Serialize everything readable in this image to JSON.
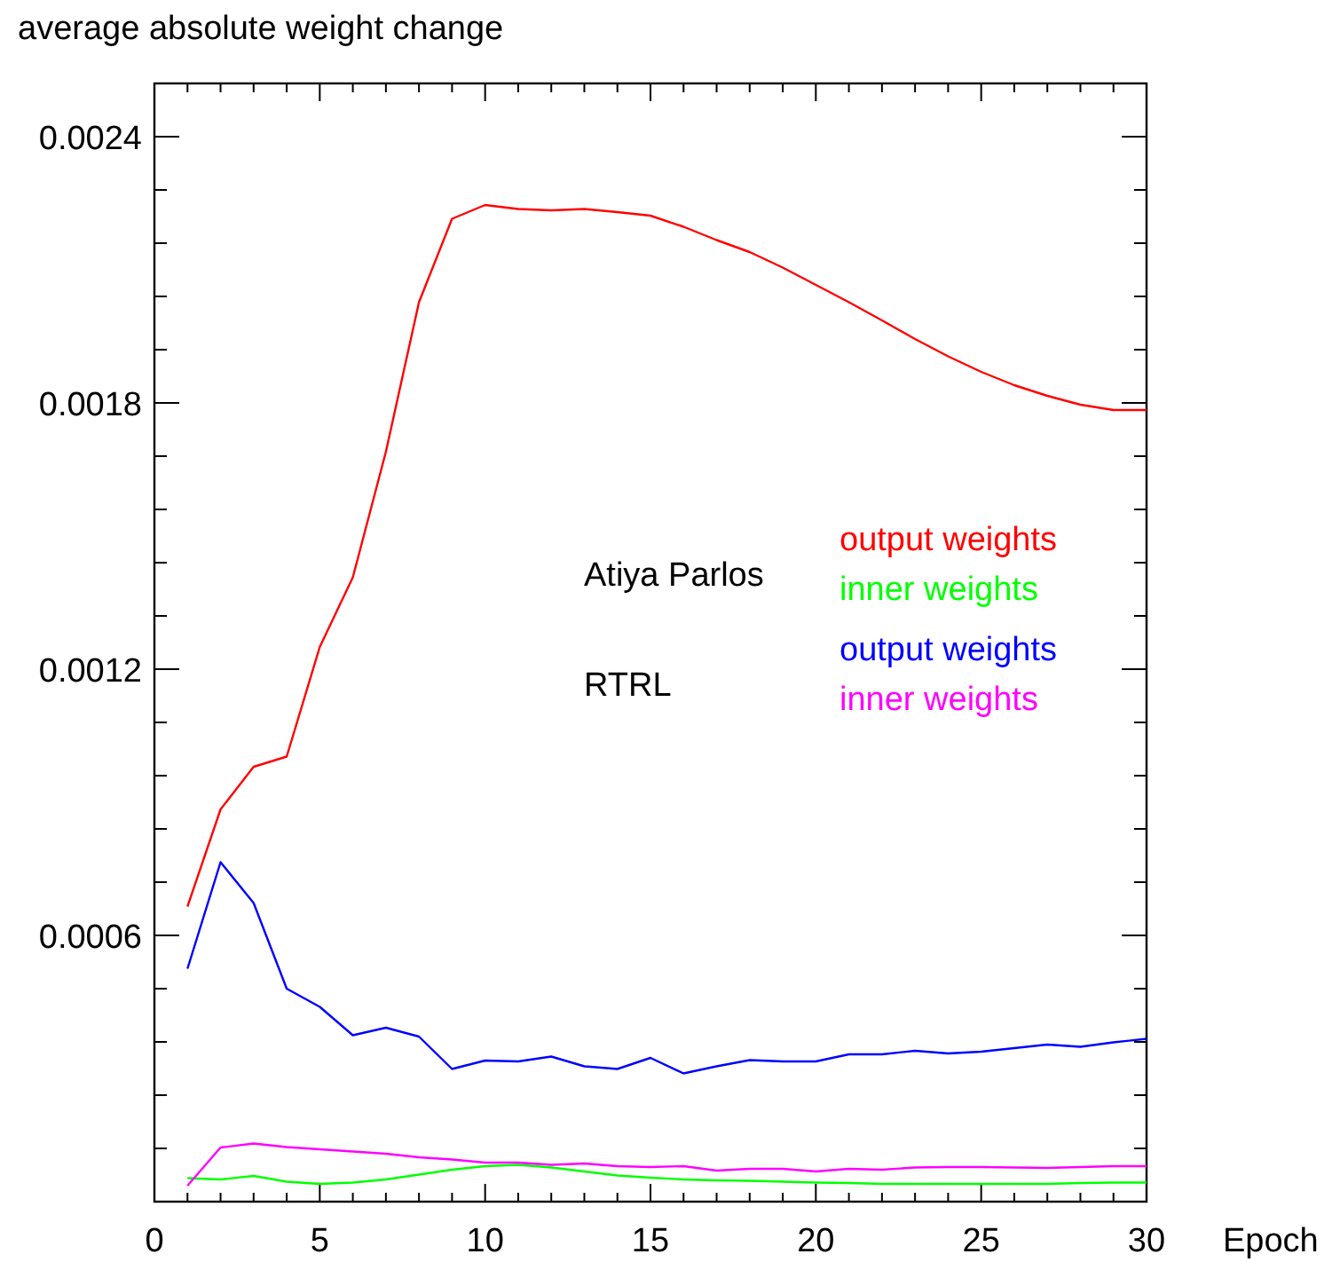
{
  "chart_data": {
    "type": "line",
    "ylabel": "average absolute weight change",
    "xlabel": "Epoch",
    "x": [
      1,
      2,
      3,
      4,
      5,
      6,
      7,
      8,
      9,
      10,
      11,
      12,
      13,
      14,
      15,
      16,
      17,
      18,
      19,
      20,
      21,
      22,
      23,
      24,
      25,
      26,
      27,
      28,
      29,
      30
    ],
    "xlim": [
      0,
      30
    ],
    "xticks": [
      0,
      {
        "value": 1,
        "label": null
      },
      {
        "value": 2,
        "label": null
      },
      {
        "value": 3,
        "label": null
      },
      {
        "value": 4,
        "label": null
      },
      5,
      {
        "value": 6,
        "label": null
      },
      {
        "value": 7,
        "label": null
      },
      {
        "value": 8,
        "label": null
      },
      {
        "value": 9,
        "label": null
      },
      10,
      {
        "value": 11,
        "label": null
      },
      {
        "value": 12,
        "label": null
      },
      {
        "value": 13,
        "label": null
      },
      {
        "value": 14,
        "label": null
      },
      15,
      {
        "value": 16,
        "label": null
      },
      {
        "value": 17,
        "label": null
      },
      {
        "value": 18,
        "label": null
      },
      {
        "value": 19,
        "label": null
      },
      20,
      {
        "value": 21,
        "label": null
      },
      {
        "value": 22,
        "label": null
      },
      {
        "value": 23,
        "label": null
      },
      {
        "value": 24,
        "label": null
      },
      25,
      {
        "value": 26,
        "label": null
      },
      {
        "value": 27,
        "label": null
      },
      {
        "value": 28,
        "label": null
      },
      {
        "value": 29,
        "label": null
      },
      30
    ],
    "ylim": [
      0,
      0.00252
    ],
    "yticks": [
      {
        "value": 0.00012,
        "label": null
      },
      {
        "value": 0.00024,
        "label": null
      },
      {
        "value": 0.00036,
        "label": null
      },
      {
        "value": 0.00048,
        "label": null
      },
      {
        "value": 0.0006,
        "label": "0.0006"
      },
      {
        "value": 0.00072,
        "label": null
      },
      {
        "value": 0.00084,
        "label": null
      },
      {
        "value": 0.00096,
        "label": null
      },
      {
        "value": 0.00108,
        "label": null
      },
      {
        "value": 0.0012,
        "label": "0.0012"
      },
      {
        "value": 0.00132,
        "label": null
      },
      {
        "value": 0.00144,
        "label": null
      },
      {
        "value": 0.00156,
        "label": null
      },
      {
        "value": 0.00168,
        "label": null
      },
      {
        "value": 0.0018,
        "label": "0.0018"
      },
      {
        "value": 0.00192,
        "label": null
      },
      {
        "value": 0.00204,
        "label": null
      },
      {
        "value": 0.00216,
        "label": null
      },
      {
        "value": 0.00228,
        "label": null
      },
      {
        "value": 0.0024,
        "label": "0.0024"
      }
    ],
    "grid": false,
    "legend": "right",
    "marker": "none",
    "line_style": "solid",
    "annotations": [
      "Atiya Parlos",
      "RTRL"
    ],
    "series": [
      {
        "name": "output weights",
        "color": "#ff0000",
        "values": [
          0.000665,
          0.000884,
          0.00098,
          0.001003,
          0.00125,
          0.001407,
          0.00169,
          0.002027,
          0.002215,
          0.002246,
          0.002237,
          0.002234,
          0.002237,
          0.00223,
          0.002222,
          0.002197,
          0.002167,
          0.00214,
          0.002105,
          0.002066,
          0.002027,
          0.001986,
          0.001944,
          0.001905,
          0.00187,
          0.00184,
          0.001816,
          0.001796,
          0.001784,
          0.001784
        ]
      },
      {
        "name": "inner weights",
        "color": "#00ff00",
        "values": [
          5.3e-05,
          5e-05,
          5.8e-05,
          4.5e-05,
          4e-05,
          4.3e-05,
          5e-05,
          6.1e-05,
          7.2e-05,
          8e-05,
          8.3e-05,
          7.7e-05,
          6.8e-05,
          5.9e-05,
          5.4e-05,
          5e-05,
          4.8e-05,
          4.7e-05,
          4.5e-05,
          4.3e-05,
          4.2e-05,
          4e-05,
          4e-05,
          4e-05,
          4e-05,
          4e-05,
          4e-05,
          4.2e-05,
          4.3e-05,
          4.3e-05
        ]
      },
      {
        "name": "output weights",
        "color": "#0000ff",
        "values": [
          0.000525,
          0.000765,
          0.000673,
          0.00048,
          0.000439,
          0.000375,
          0.000392,
          0.000372,
          0.000299,
          0.000318,
          0.000316,
          0.000327,
          0.000305,
          0.000299,
          0.000324,
          0.000289,
          0.000305,
          0.000319,
          0.000316,
          0.000316,
          0.000332,
          0.000332,
          0.00034,
          0.000334,
          0.000338,
          0.000346,
          0.000354,
          0.000349,
          0.000359,
          0.000367
        ]
      },
      {
        "name": "inner weights",
        "color": "#ff00ff",
        "values": [
          3.6e-05,
          0.000122,
          0.000131,
          0.000123,
          0.000118,
          0.000113,
          0.000108,
          0.0001,
          9.5e-05,
          8.8e-05,
          8.8e-05,
          8.3e-05,
          8.6e-05,
          8e-05,
          7.8e-05,
          8e-05,
          7e-05,
          7.4e-05,
          7.4e-05,
          6.8e-05,
          7.4e-05,
          7.2e-05,
          7.7e-05,
          7.8e-05,
          7.8e-05,
          7.7e-05,
          7.6e-05,
          7.8e-05,
          8e-05,
          8e-05
        ]
      }
    ]
  }
}
